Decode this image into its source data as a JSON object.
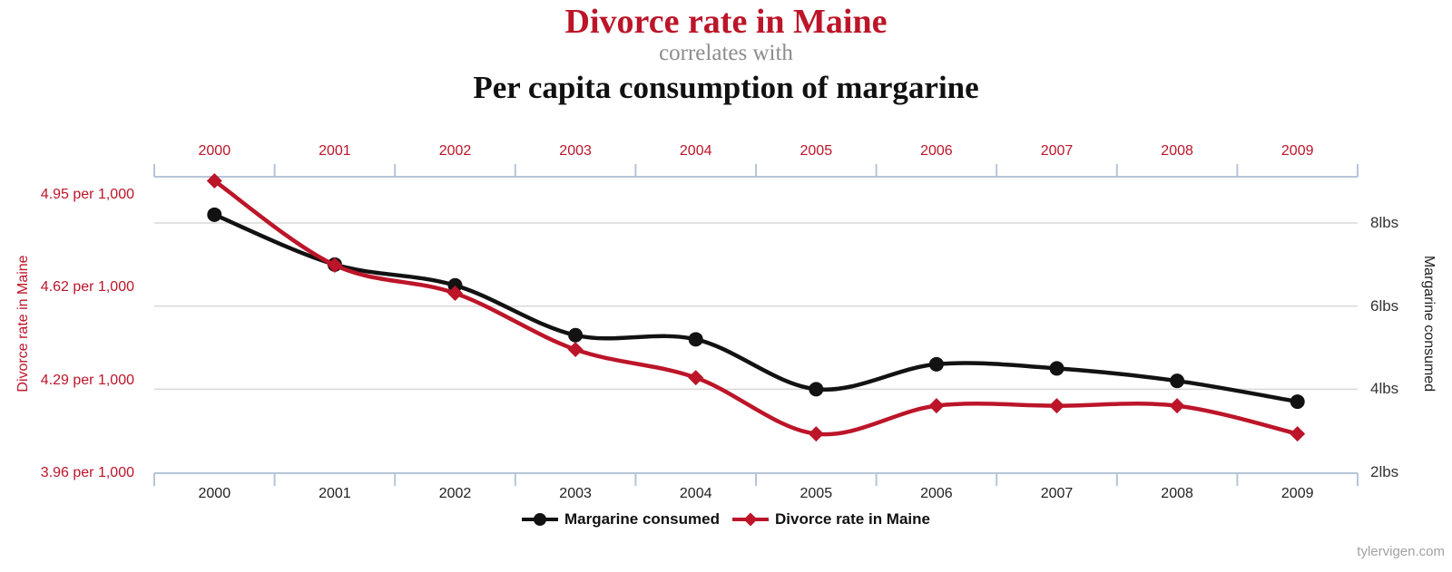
{
  "header": {
    "title": "Divorce rate in Maine",
    "connector": "correlates with",
    "subtitle": "Per capita consumption of margarine"
  },
  "footer": {
    "watermark": "tylervigen.com"
  },
  "colors": {
    "red": "#bc1529",
    "series_black": "#121212",
    "axis_line": "#b6c4d8",
    "gridline": "#d8d8d8",
    "connector_gray": "#8c8c8c",
    "bottom_year_text": "#222222",
    "watermark_gray": "#a2a2a2"
  },
  "chart_data": {
    "type": "line",
    "title": "Divorce rate in Maine correlates with Per capita consumption of margarine",
    "x": [
      2000,
      2001,
      2002,
      2003,
      2004,
      2005,
      2006,
      2007,
      2008,
      2009
    ],
    "series": [
      {
        "name": "Margarine consumed",
        "axis": "right",
        "marker": "circle",
        "color": "#121212",
        "unit": "lbs",
        "values": [
          8.2,
          7.0,
          6.5,
          5.3,
          5.2,
          4.0,
          4.6,
          4.5,
          4.2,
          3.7
        ]
      },
      {
        "name": "Divorce rate in Maine",
        "axis": "left",
        "marker": "diamond",
        "color": "#bc1529",
        "unit": "per 1,000",
        "values": [
          5.0,
          4.7,
          4.6,
          4.4,
          4.3,
          4.1,
          4.2,
          4.2,
          4.2,
          4.1
        ]
      }
    ],
    "left_axis": {
      "title": "Divorce rate in Maine",
      "range": [
        3.96,
        4.95
      ],
      "ticks": [
        {
          "value": 4.95,
          "label": "4.95 per 1,000"
        },
        {
          "value": 4.62,
          "label": "4.62 per 1,000"
        },
        {
          "value": 4.29,
          "label": "4.29 per 1,000"
        },
        {
          "value": 3.96,
          "label": "3.96 per 1,000"
        }
      ]
    },
    "right_axis": {
      "title": "Margarine consumed",
      "range": [
        2,
        8
      ],
      "ticks": [
        {
          "value": 8,
          "label": "8lbs"
        },
        {
          "value": 6,
          "label": "6lbs"
        },
        {
          "value": 4,
          "label": "4lbs"
        },
        {
          "value": 2,
          "label": "2lbs"
        }
      ],
      "grid_values": [
        8,
        6,
        4
      ]
    },
    "legend": [
      "Margarine consumed",
      "Divorce rate in Maine"
    ],
    "legend_position": "bottom",
    "grid": "horizontal"
  }
}
